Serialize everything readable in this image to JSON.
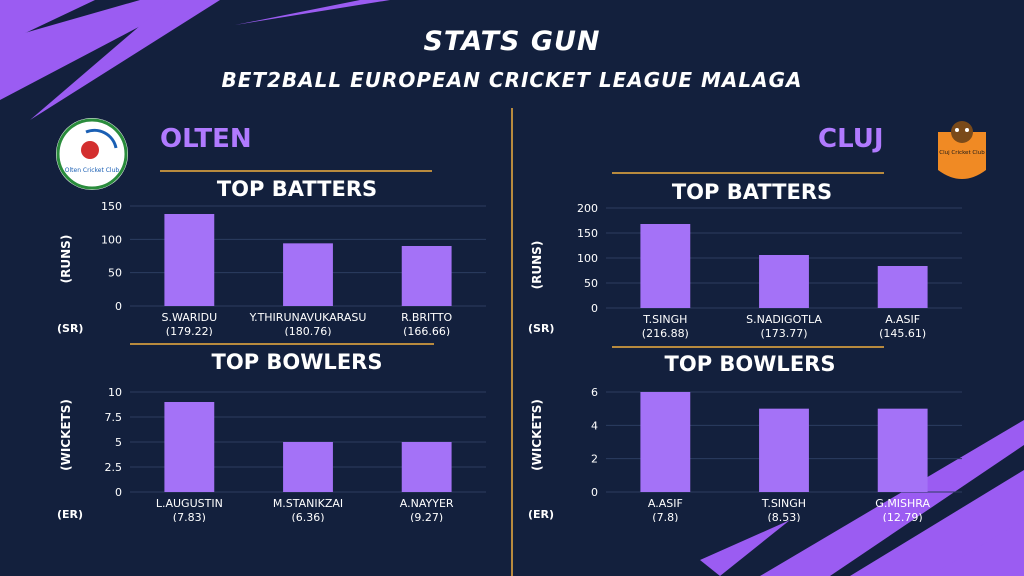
{
  "header": {
    "title": "STATS GUN",
    "subtitle": "BET2BALL EUROPEAN CRICKET LEAGUE MALAGA"
  },
  "colors": {
    "background": "#13203d",
    "bar": "#a472f7",
    "accent": "#b07aff",
    "rule": "#b88a3e"
  },
  "left_team": {
    "name": "OLTEN",
    "logo_text": "Olten Cricket Club",
    "batters_title": "TOP BATTERS",
    "bowlers_title": "TOP BOWLERS",
    "batters_ylabel": "(RUNS)",
    "bowlers_ylabel": "(WICKETS)",
    "batters_row_label": "(SR)",
    "bowlers_row_label": "(ER)"
  },
  "right_team": {
    "name": "CLUJ",
    "logo_text": "Cluj Cricket Club",
    "batters_title": "TOP BATTERS",
    "bowlers_title": "TOP BOWLERS",
    "batters_ylabel": "(RUNS)",
    "bowlers_ylabel": "(WICKETS)",
    "batters_row_label": "(SR)",
    "bowlers_row_label": "(ER)"
  },
  "chart_data": [
    {
      "id": "olten-batters",
      "type": "bar",
      "categories": [
        "S.WARIDU",
        "Y.THIRUNAVUKARASU",
        "R.BRITTO"
      ],
      "sublabels": [
        "(179.22)",
        "(180.76)",
        "(166.66)"
      ],
      "values": [
        138,
        94,
        90
      ],
      "ylim": [
        0,
        150
      ],
      "yticks": [
        "0",
        "50",
        "100",
        "150"
      ],
      "ytick_values": [
        0,
        50,
        100,
        150
      ],
      "title": "TOP BATTERS",
      "ylabel": "(RUNS)"
    },
    {
      "id": "olten-bowlers",
      "type": "bar",
      "categories": [
        "L.AUGUSTIN",
        "M.STANIKZAI",
        "A.NAYYER"
      ],
      "sublabels": [
        "(7.83)",
        "(6.36)",
        "(9.27)"
      ],
      "values": [
        9,
        5,
        5
      ],
      "ylim": [
        0,
        10
      ],
      "yticks": [
        "0",
        "2.5",
        "5",
        "7.5",
        "10"
      ],
      "ytick_values": [
        0,
        2.5,
        5,
        7.5,
        10
      ],
      "title": "TOP BOWLERS",
      "ylabel": "(WICKETS)"
    },
    {
      "id": "cluj-batters",
      "type": "bar",
      "categories": [
        "T.SINGH",
        "S.NADIGOTLA",
        "A.ASIF"
      ],
      "sublabels": [
        "(216.88)",
        "(173.77)",
        "(145.61)"
      ],
      "values": [
        168,
        106,
        84
      ],
      "ylim": [
        0,
        200
      ],
      "yticks": [
        "0",
        "50",
        "100",
        "150",
        "200"
      ],
      "ytick_values": [
        0,
        50,
        100,
        150,
        200
      ],
      "title": "TOP BATTERS",
      "ylabel": "(RUNS)"
    },
    {
      "id": "cluj-bowlers",
      "type": "bar",
      "categories": [
        "A.ASIF",
        "T.SINGH",
        "G.MISHRA"
      ],
      "sublabels": [
        "(7.8)",
        "(8.53)",
        "(12.79)"
      ],
      "values": [
        6,
        5,
        5
      ],
      "ylim": [
        0,
        6
      ],
      "yticks": [
        "0",
        "2",
        "4",
        "6"
      ],
      "ytick_values": [
        0,
        2,
        4,
        6
      ],
      "title": "TOP BOWLERS",
      "ylabel": "(WICKETS)"
    }
  ]
}
